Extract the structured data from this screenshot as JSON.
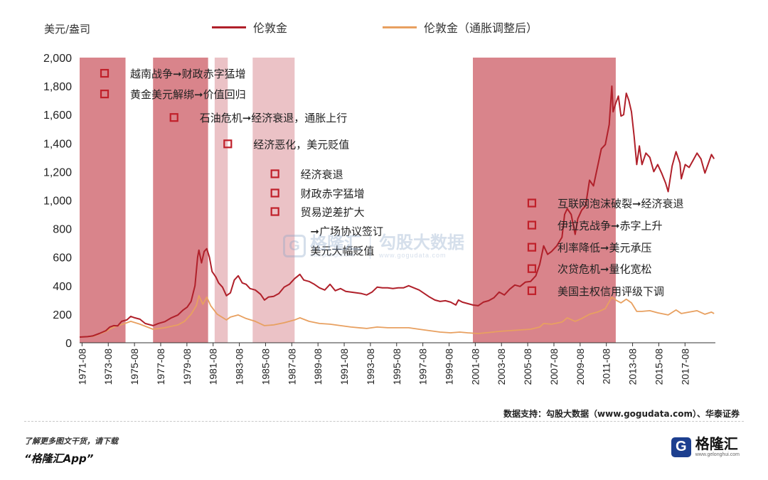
{
  "chart_data": {
    "type": "line",
    "ylabel": "美元/盎司",
    "ylim": [
      0,
      2000
    ],
    "yticks": [
      "0",
      "200",
      "400",
      "600",
      "800",
      "1,000",
      "1,200",
      "1,400",
      "1,600",
      "1,800",
      "2,000"
    ],
    "xticks": [
      "1971-08",
      "1973-08",
      "1975-08",
      "1977-08",
      "1979-08",
      "1981-08",
      "1983-08",
      "1985-08",
      "1987-08",
      "1989-08",
      "1991-08",
      "1993-08",
      "1995-08",
      "1997-08",
      "1999-08",
      "2001-08",
      "2003-08",
      "2005-08",
      "2007-08",
      "2009-08",
      "2011-08",
      "2013-08",
      "2015-08",
      "2017-08"
    ],
    "xlim": [
      1971.0,
      2019.5
    ],
    "grid": false,
    "legend_position": "top",
    "colors": {
      "nominal": "#b0202a",
      "real": "#e8a060",
      "band_dark": "#d9848b",
      "band_light": "#ebc2c6",
      "marker": "#c0202a"
    },
    "series": [
      {
        "name": "伦敦金",
        "points": [
          [
            1971.0,
            40
          ],
          [
            1971.6,
            43
          ],
          [
            1972.0,
            48
          ],
          [
            1972.5,
            65
          ],
          [
            1973.0,
            85
          ],
          [
            1973.3,
            110
          ],
          [
            1973.6,
            120
          ],
          [
            1973.9,
            118
          ],
          [
            1974.2,
            150
          ],
          [
            1974.6,
            160
          ],
          [
            1974.9,
            185
          ],
          [
            1975.2,
            175
          ],
          [
            1975.6,
            165
          ],
          [
            1976.0,
            135
          ],
          [
            1976.6,
            120
          ],
          [
            1977.0,
            135
          ],
          [
            1977.5,
            148
          ],
          [
            1978.0,
            175
          ],
          [
            1978.5,
            195
          ],
          [
            1978.9,
            230
          ],
          [
            1979.2,
            250
          ],
          [
            1979.5,
            290
          ],
          [
            1979.8,
            400
          ],
          [
            1980.0,
            600
          ],
          [
            1980.1,
            650
          ],
          [
            1980.3,
            560
          ],
          [
            1980.5,
            640
          ],
          [
            1980.7,
            660
          ],
          [
            1980.9,
            600
          ],
          [
            1981.1,
            500
          ],
          [
            1981.4,
            460
          ],
          [
            1981.6,
            420
          ],
          [
            1981.9,
            390
          ],
          [
            1982.2,
            330
          ],
          [
            1982.5,
            350
          ],
          [
            1982.8,
            440
          ],
          [
            1983.1,
            470
          ],
          [
            1983.4,
            420
          ],
          [
            1983.7,
            410
          ],
          [
            1984.0,
            380
          ],
          [
            1984.4,
            370
          ],
          [
            1984.8,
            340
          ],
          [
            1985.1,
            300
          ],
          [
            1985.4,
            320
          ],
          [
            1985.8,
            325
          ],
          [
            1986.2,
            345
          ],
          [
            1986.6,
            390
          ],
          [
            1987.0,
            410
          ],
          [
            1987.4,
            450
          ],
          [
            1987.8,
            480
          ],
          [
            1988.1,
            440
          ],
          [
            1988.5,
            430
          ],
          [
            1988.9,
            410
          ],
          [
            1989.3,
            385
          ],
          [
            1989.7,
            370
          ],
          [
            1990.1,
            410
          ],
          [
            1990.5,
            365
          ],
          [
            1990.9,
            380
          ],
          [
            1991.3,
            360
          ],
          [
            1991.7,
            355
          ],
          [
            1992.1,
            350
          ],
          [
            1992.5,
            345
          ],
          [
            1992.9,
            335
          ],
          [
            1993.3,
            355
          ],
          [
            1993.7,
            390
          ],
          [
            1994.1,
            385
          ],
          [
            1994.5,
            385
          ],
          [
            1994.9,
            380
          ],
          [
            1995.3,
            385
          ],
          [
            1995.7,
            385
          ],
          [
            1996.1,
            400
          ],
          [
            1996.5,
            385
          ],
          [
            1996.9,
            370
          ],
          [
            1997.3,
            345
          ],
          [
            1997.7,
            320
          ],
          [
            1998.1,
            300
          ],
          [
            1998.5,
            290
          ],
          [
            1998.9,
            295
          ],
          [
            1999.3,
            285
          ],
          [
            1999.7,
            265
          ],
          [
            1999.9,
            300
          ],
          [
            2000.2,
            285
          ],
          [
            2000.6,
            275
          ],
          [
            2001.0,
            265
          ],
          [
            2001.4,
            260
          ],
          [
            2001.8,
            285
          ],
          [
            2002.2,
            295
          ],
          [
            2002.6,
            315
          ],
          [
            2003.0,
            355
          ],
          [
            2003.4,
            335
          ],
          [
            2003.8,
            375
          ],
          [
            2004.2,
            405
          ],
          [
            2004.6,
            395
          ],
          [
            2005.0,
            425
          ],
          [
            2005.4,
            430
          ],
          [
            2005.8,
            470
          ],
          [
            2006.1,
            550
          ],
          [
            2006.4,
            680
          ],
          [
            2006.7,
            620
          ],
          [
            2007.0,
            640
          ],
          [
            2007.4,
            680
          ],
          [
            2007.8,
            740
          ],
          [
            2008.0,
            900
          ],
          [
            2008.2,
            940
          ],
          [
            2008.5,
            900
          ],
          [
            2008.8,
            760
          ],
          [
            2009.0,
            870
          ],
          [
            2009.3,
            930
          ],
          [
            2009.6,
            960
          ],
          [
            2009.9,
            1140
          ],
          [
            2010.2,
            1100
          ],
          [
            2010.5,
            1230
          ],
          [
            2010.8,
            1360
          ],
          [
            2011.1,
            1390
          ],
          [
            2011.4,
            1530
          ],
          [
            2011.6,
            1800
          ],
          [
            2011.7,
            1620
          ],
          [
            2011.9,
            1680
          ],
          [
            2012.1,
            1730
          ],
          [
            2012.3,
            1590
          ],
          [
            2012.5,
            1600
          ],
          [
            2012.7,
            1750
          ],
          [
            2012.9,
            1700
          ],
          [
            2013.1,
            1620
          ],
          [
            2013.3,
            1450
          ],
          [
            2013.5,
            1250
          ],
          [
            2013.7,
            1380
          ],
          [
            2013.9,
            1250
          ],
          [
            2014.2,
            1330
          ],
          [
            2014.5,
            1300
          ],
          [
            2014.8,
            1200
          ],
          [
            2015.1,
            1250
          ],
          [
            2015.4,
            1190
          ],
          [
            2015.7,
            1120
          ],
          [
            2015.9,
            1060
          ],
          [
            2016.2,
            1240
          ],
          [
            2016.5,
            1340
          ],
          [
            2016.8,
            1260
          ],
          [
            2016.9,
            1150
          ],
          [
            2017.2,
            1250
          ],
          [
            2017.5,
            1230
          ],
          [
            2017.8,
            1280
          ],
          [
            2018.1,
            1330
          ],
          [
            2018.4,
            1290
          ],
          [
            2018.7,
            1190
          ],
          [
            2018.9,
            1240
          ],
          [
            2019.2,
            1320
          ],
          [
            2019.4,
            1290
          ]
        ]
      },
      {
        "name": "伦敦金（通胀调整后）",
        "points": [
          [
            1971.0,
            40
          ],
          [
            1972.0,
            45
          ],
          [
            1973.0,
            80
          ],
          [
            1973.6,
            110
          ],
          [
            1974.3,
            130
          ],
          [
            1974.9,
            150
          ],
          [
            1975.6,
            130
          ],
          [
            1976.6,
            95
          ],
          [
            1977.5,
            105
          ],
          [
            1978.5,
            125
          ],
          [
            1979.0,
            150
          ],
          [
            1979.5,
            200
          ],
          [
            1979.9,
            260
          ],
          [
            1980.1,
            330
          ],
          [
            1980.4,
            270
          ],
          [
            1980.7,
            320
          ],
          [
            1981.0,
            260
          ],
          [
            1981.5,
            200
          ],
          [
            1982.2,
            160
          ],
          [
            1982.5,
            180
          ],
          [
            1983.1,
            195
          ],
          [
            1983.7,
            170
          ],
          [
            1984.4,
            150
          ],
          [
            1985.1,
            120
          ],
          [
            1985.8,
            125
          ],
          [
            1986.6,
            140
          ],
          [
            1987.4,
            160
          ],
          [
            1987.8,
            175
          ],
          [
            1988.5,
            150
          ],
          [
            1989.3,
            135
          ],
          [
            1990.1,
            130
          ],
          [
            1990.9,
            120
          ],
          [
            1991.7,
            110
          ],
          [
            1992.9,
            100
          ],
          [
            1993.7,
            110
          ],
          [
            1994.5,
            105
          ],
          [
            1995.3,
            105
          ],
          [
            1996.1,
            105
          ],
          [
            1996.9,
            95
          ],
          [
            1997.7,
            85
          ],
          [
            1998.5,
            75
          ],
          [
            1999.3,
            70
          ],
          [
            2000.0,
            75
          ],
          [
            2000.6,
            70
          ],
          [
            2001.4,
            65
          ],
          [
            2002.2,
            72
          ],
          [
            2003.0,
            80
          ],
          [
            2003.8,
            85
          ],
          [
            2004.6,
            90
          ],
          [
            2005.4,
            95
          ],
          [
            2006.1,
            110
          ],
          [
            2006.4,
            135
          ],
          [
            2007.0,
            130
          ],
          [
            2007.8,
            145
          ],
          [
            2008.2,
            175
          ],
          [
            2008.8,
            150
          ],
          [
            2009.3,
            170
          ],
          [
            2009.9,
            200
          ],
          [
            2010.5,
            215
          ],
          [
            2011.1,
            240
          ],
          [
            2011.6,
            320
          ],
          [
            2011.9,
            300
          ],
          [
            2012.3,
            280
          ],
          [
            2012.7,
            305
          ],
          [
            2013.1,
            280
          ],
          [
            2013.5,
            220
          ],
          [
            2013.9,
            220
          ],
          [
            2014.5,
            225
          ],
          [
            2015.1,
            210
          ],
          [
            2015.9,
            195
          ],
          [
            2016.5,
            230
          ],
          [
            2016.9,
            205
          ],
          [
            2017.5,
            215
          ],
          [
            2018.1,
            225
          ],
          [
            2018.7,
            200
          ],
          [
            2019.2,
            215
          ],
          [
            2019.4,
            205
          ]
        ]
      }
    ],
    "bands": [
      {
        "start": 1971.0,
        "end": 1974.5,
        "tone": "dark"
      },
      {
        "start": 1976.6,
        "end": 1980.8,
        "tone": "dark"
      },
      {
        "start": 1981.3,
        "end": 1982.3,
        "tone": "light"
      },
      {
        "start": 1984.2,
        "end": 1987.4,
        "tone": "light"
      },
      {
        "start": 2001.0,
        "end": 2011.9,
        "tone": "dark"
      }
    ],
    "annotations": [
      {
        "id": "a1",
        "text": "越南战争➞财政赤字猛增",
        "x": 1972.9,
        "y": 1890,
        "marker": true
      },
      {
        "id": "a2",
        "text": "黄金美元解绑➞价值回归",
        "x": 1972.9,
        "y": 1745,
        "marker": true
      },
      {
        "id": "a3",
        "text": "石油危机➞经济衰退，通胀上行",
        "x": 1978.2,
        "y": 1580,
        "marker": true
      },
      {
        "id": "a4",
        "text": "经济恶化，美元贬值",
        "x": 1982.3,
        "y": 1395,
        "marker": true
      },
      {
        "id": "a5",
        "text": "经济衰退",
        "x": 1985.9,
        "y": 1185,
        "marker": true
      },
      {
        "id": "a6",
        "text": "财政赤字猛增",
        "x": 1985.9,
        "y": 1050,
        "marker": true
      },
      {
        "id": "a7",
        "text": "贸易逆差扩大",
        "x": 1985.9,
        "y": 920,
        "marker": true
      },
      {
        "id": "a8",
        "text": "➞广场协议签订",
        "x": 1988.6,
        "y": 785,
        "marker": false
      },
      {
        "id": "a9",
        "text": "美元大幅贬值",
        "x": 1988.6,
        "y": 648,
        "marker": false
      },
      {
        "id": "a10",
        "text": "互联网泡沫破裂➞经济衰退",
        "x": 2005.5,
        "y": 980,
        "marker": true
      },
      {
        "id": "a11",
        "text": "伊拉克战争➞赤字上升",
        "x": 2005.5,
        "y": 825,
        "marker": true
      },
      {
        "id": "a12",
        "text": "利率降低➞美元承压",
        "x": 2005.5,
        "y": 670,
        "marker": true
      },
      {
        "id": "a13",
        "text": "次贷危机➞量化宽松",
        "x": 2005.5,
        "y": 520,
        "marker": true
      },
      {
        "id": "a14",
        "text": "美国主权信用评级下调",
        "x": 2005.5,
        "y": 365,
        "marker": true
      }
    ]
  },
  "legend": [
    {
      "label": "伦敦金",
      "color": "#b0202a"
    },
    {
      "label": "伦敦金（通胀调整后）",
      "color": "#e8a060"
    }
  ],
  "source": "数据支持：勾股大数据（www.gogudata.com）、华泰证券",
  "footer": {
    "small": "了解更多图文干货，请下载",
    "big": "“格隆汇App”"
  },
  "brand": {
    "mark": "G",
    "name": "格隆汇",
    "url": "www.gelonghui.com",
    "color": "#1d3f8f"
  },
  "watermark": {
    "mark": "G",
    "name": "格隆汇",
    "url": "www.gelonghui.com",
    "name2": "勾股大数据",
    "url2": "www.gogudata.com"
  }
}
